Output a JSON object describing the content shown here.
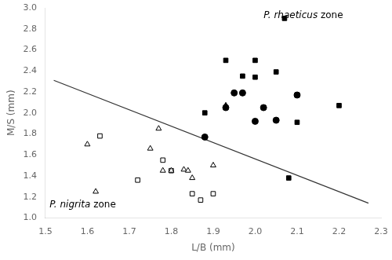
{
  "chart_data": {
    "type": "scatter",
    "xlabel": "L/B (mm)",
    "ylabel": "M/S (mm)",
    "xlim": [
      1.5,
      2.3
    ],
    "ylim": [
      1.0,
      3.0
    ],
    "xticks": [
      1.5,
      1.6,
      1.7,
      1.8,
      1.9,
      {
        "value": 2.0,
        "label": "2.0"
      },
      2.1,
      2.2,
      2.3
    ],
    "yticks": [
      {
        "value": 1.0,
        "label": "1.0"
      },
      1.2,
      1.4,
      1.6,
      1.8,
      {
        "value": 2.0,
        "label": "2.0"
      },
      2.2,
      2.4,
      2.6,
      2.8,
      {
        "value": 3.0,
        "label": "3.0"
      }
    ],
    "grid": false,
    "series": [
      {
        "marker": "circle",
        "color": "#000000",
        "x": [
          1.88,
          1.95,
          1.97,
          2.0,
          2.02,
          2.05,
          2.1,
          1.93
        ],
        "values": [
          1.77,
          2.19,
          2.19,
          1.92,
          2.05,
          1.93,
          2.17,
          2.05
        ]
      },
      {
        "marker": "square",
        "color": "#000000",
        "x": [
          1.88,
          1.93,
          1.97,
          2.0,
          2.0,
          2.05,
          2.07,
          2.1,
          2.1,
          2.08,
          2.2
        ],
        "values": [
          2.0,
          2.5,
          2.35,
          2.34,
          2.5,
          2.39,
          2.9,
          1.91,
          2.17,
          1.38,
          2.07
        ]
      },
      {
        "marker": "triangle",
        "color": "#000000",
        "x": [
          1.93
        ],
        "values": [
          2.07
        ]
      },
      {
        "marker": "triangle",
        "color": "#ffffff",
        "x": [
          1.6,
          1.62,
          1.75,
          1.77,
          1.78,
          1.8,
          1.83,
          1.84,
          1.85,
          1.9
        ],
        "values": [
          1.7,
          1.25,
          1.66,
          1.85,
          1.45,
          1.45,
          1.46,
          1.45,
          1.38,
          1.5
        ]
      },
      {
        "marker": "square",
        "color": "#ffffff",
        "x": [
          1.63,
          1.72,
          1.78,
          1.8,
          1.85,
          1.87,
          1.9
        ],
        "values": [
          1.78,
          1.36,
          1.55,
          1.45,
          1.23,
          1.17,
          1.23
        ]
      },
      {
        "type": "line",
        "color": "#333333",
        "x": [
          1.52,
          2.27
        ],
        "values": [
          2.31,
          1.14
        ]
      }
    ],
    "annotations": [
      {
        "text": "P. rhaeticus zone",
        "x": 2.02,
        "y": 2.97,
        "color": "#000000"
      },
      {
        "text": "P. nigrita zone",
        "x": 1.51,
        "y": 1.08,
        "color": "#000000"
      }
    ]
  }
}
